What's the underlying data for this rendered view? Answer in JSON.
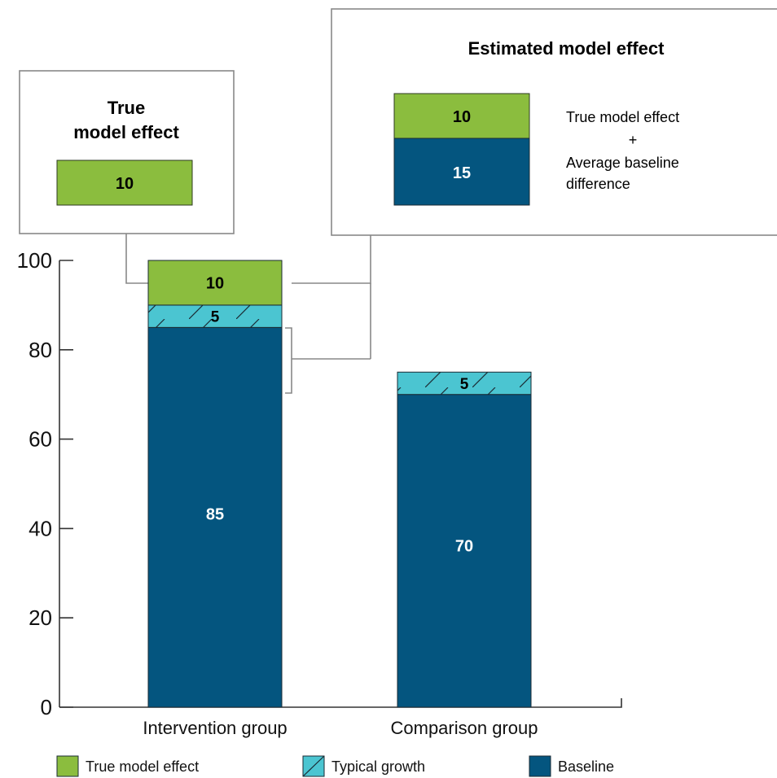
{
  "chart_data": {
    "type": "bar",
    "stacked": true,
    "categories": [
      "Intervention group",
      "Comparison group"
    ],
    "series": [
      {
        "name": "Baseline",
        "values": [
          85,
          70
        ],
        "color": "#04557f"
      },
      {
        "name": "Typical growth",
        "values": [
          5,
          5
        ],
        "color": "#4bc5d1",
        "pattern": "diagonal-hatch"
      },
      {
        "name": "True model effect",
        "values": [
          10,
          0
        ],
        "color": "#8bbd3e"
      }
    ],
    "ylim": [
      0,
      100
    ],
    "yticks": [
      0,
      20,
      40,
      60,
      80,
      100
    ],
    "grid": false,
    "legend": "bottom"
  },
  "callouts": {
    "true_effect": {
      "title_line1": "True",
      "title_line2": "model effect",
      "value": "10"
    },
    "estimated_effect": {
      "title": "Estimated model effect",
      "value_top": "10",
      "value_bottom": "15",
      "note_line1": "True model effect",
      "note_line2": "+",
      "note_line3": "Average baseline",
      "note_line4": "difference"
    }
  }
}
